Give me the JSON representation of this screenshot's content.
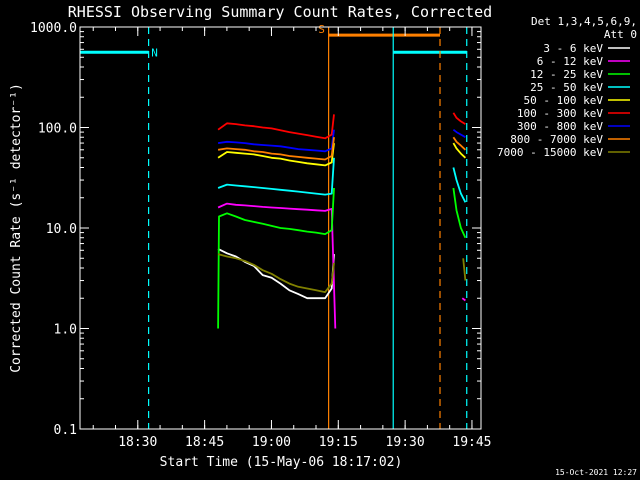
{
  "chart_data": {
    "type": "line",
    "title": "RHESSI Observing Summary Count Rates, Corrected",
    "xlabel": "Start Time (15-May-06 18:17:02)",
    "ylabel": "Corrected Count Rate (s⁻¹ detector⁻¹)",
    "yscale": "log",
    "ylim": [
      0.1,
      1000
    ],
    "xlim_minutes": [
      0,
      90
    ],
    "x_ticks": [
      {
        "label": "18:30",
        "minutes": 12.97
      },
      {
        "label": "18:45",
        "minutes": 27.97
      },
      {
        "label": "19:00",
        "minutes": 42.97
      },
      {
        "label": "19:15",
        "minutes": 57.97
      },
      {
        "label": "19:30",
        "minutes": 72.97
      },
      {
        "label": "19:45",
        "minutes": 87.97
      }
    ],
    "y_ticks": [
      {
        "label": "1000.0",
        "value": 1000
      },
      {
        "label": "100.0",
        "value": 100
      },
      {
        "label": "10.0",
        "value": 10
      },
      {
        "label": "1.0",
        "value": 1
      },
      {
        "label": "0.1",
        "value": 0.1
      }
    ],
    "legend_header": [
      "Det 1,3,4,5,6,9,",
      "Att 0"
    ],
    "legend_position": "right",
    "grid": false,
    "timestamp": "15-Oct-2021 12:27",
    "series": [
      {
        "name": "3 - 6 keV",
        "color": "#ffffff",
        "segments": [
          [
            [
              31.0,
              6.2
            ],
            [
              33.0,
              5.6
            ],
            [
              35.0,
              5.2
            ],
            [
              37.0,
              4.6
            ],
            [
              39.0,
              4.2
            ],
            [
              41.0,
              3.4
            ],
            [
              43.0,
              3.2
            ],
            [
              45.0,
              2.8
            ],
            [
              47.0,
              2.4
            ],
            [
              49.0,
              2.2
            ],
            [
              51.0,
              2.0
            ],
            [
              53.0,
              2.0
            ],
            [
              55.0,
              2.0
            ],
            [
              56.5,
              2.5
            ],
            [
              57.0,
              5.5
            ]
          ]
        ]
      },
      {
        "name": "6 - 12 keV",
        "color": "#ff00ff",
        "segments": [
          [
            [
              31.0,
              16.0
            ],
            [
              33.0,
              17.5
            ],
            [
              35.0,
              17.0
            ],
            [
              37.0,
              16.8
            ],
            [
              39.0,
              16.5
            ],
            [
              41.0,
              16.2
            ],
            [
              43.0,
              16.0
            ],
            [
              45.0,
              15.8
            ],
            [
              47.0,
              15.6
            ],
            [
              49.0,
              15.4
            ],
            [
              51.0,
              15.2
            ],
            [
              53.0,
              15.0
            ],
            [
              55.0,
              14.8
            ],
            [
              56.5,
              15.5
            ],
            [
              57.3,
              1.0
            ]
          ],
          [
            [
              85.8,
              2.0
            ],
            [
              86.5,
              1.9
            ]
          ]
        ]
      },
      {
        "name": "12 - 25 keV",
        "color": "#00ff00",
        "segments": [
          [
            [
              31.0,
              1.0
            ],
            [
              31.2,
              13.0
            ],
            [
              33.0,
              14.0
            ],
            [
              35.0,
              13.0
            ],
            [
              37.0,
              12.0
            ],
            [
              39.0,
              11.5
            ],
            [
              41.0,
              11.0
            ],
            [
              43.0,
              10.5
            ],
            [
              45.0,
              10.0
            ],
            [
              47.0,
              9.8
            ],
            [
              49.0,
              9.5
            ],
            [
              51.0,
              9.2
            ],
            [
              53.0,
              9.0
            ],
            [
              55.0,
              8.7
            ],
            [
              56.5,
              9.5
            ],
            [
              57.0,
              25.0
            ]
          ],
          [
            [
              83.8,
              25.0
            ],
            [
              84.5,
              15.0
            ],
            [
              85.5,
              10.0
            ],
            [
              86.5,
              8.0
            ]
          ]
        ]
      },
      {
        "name": "25 - 50 keV",
        "color": "#00ffff",
        "segments": [
          [
            [
              31.0,
              25.0
            ],
            [
              33.0,
              27.0
            ],
            [
              35.0,
              26.5
            ],
            [
              37.0,
              26.0
            ],
            [
              39.0,
              25.5
            ],
            [
              41.0,
              25.0
            ],
            [
              43.0,
              24.5
            ],
            [
              45.0,
              24.0
            ],
            [
              47.0,
              23.5
            ],
            [
              49.0,
              23.0
            ],
            [
              51.0,
              22.5
            ],
            [
              53.0,
              22.0
            ],
            [
              55.0,
              21.5
            ],
            [
              56.5,
              22.0
            ],
            [
              57.0,
              50.0
            ]
          ],
          [
            [
              83.8,
              40.0
            ],
            [
              84.5,
              30.0
            ],
            [
              85.5,
              22.0
            ],
            [
              86.5,
              18.0
            ]
          ]
        ]
      },
      {
        "name": "50 - 100 keV",
        "color": "#ffff00",
        "segments": [
          [
            [
              31.0,
              50.0
            ],
            [
              33.0,
              57.0
            ],
            [
              35.0,
              56.0
            ],
            [
              37.0,
              55.0
            ],
            [
              39.0,
              54.0
            ],
            [
              41.0,
              52.0
            ],
            [
              43.0,
              50.0
            ],
            [
              45.0,
              49.0
            ],
            [
              47.0,
              47.0
            ],
            [
              49.0,
              45.5
            ],
            [
              51.0,
              44.0
            ],
            [
              53.0,
              43.0
            ],
            [
              55.0,
              42.0
            ],
            [
              56.5,
              45.0
            ],
            [
              57.0,
              70.0
            ]
          ],
          [
            [
              83.8,
              70.0
            ],
            [
              84.5,
              62.0
            ],
            [
              85.5,
              55.0
            ],
            [
              86.5,
              50.0
            ]
          ]
        ]
      },
      {
        "name": "100 - 300 keV",
        "color": "#ff0000",
        "segments": [
          [
            [
              31.0,
              95.0
            ],
            [
              33.0,
              110.0
            ],
            [
              35.0,
              108.0
            ],
            [
              37.0,
              105.0
            ],
            [
              39.0,
              103.0
            ],
            [
              41.0,
              100.0
            ],
            [
              43.0,
              98.0
            ],
            [
              45.0,
              94.0
            ],
            [
              47.0,
              90.0
            ],
            [
              49.0,
              87.0
            ],
            [
              51.0,
              84.0
            ],
            [
              53.0,
              81.0
            ],
            [
              55.0,
              78.0
            ],
            [
              56.5,
              85.0
            ],
            [
              57.0,
              135.0
            ]
          ],
          [
            [
              83.8,
              140.0
            ],
            [
              84.5,
              125.0
            ],
            [
              85.5,
              115.0
            ],
            [
              86.5,
              108.0
            ]
          ]
        ]
      },
      {
        "name": "300 - 800 keV",
        "color": "#0000ff",
        "segments": [
          [
            [
              31.0,
              70.0
            ],
            [
              33.0,
              72.0
            ],
            [
              35.0,
              71.0
            ],
            [
              37.0,
              70.0
            ],
            [
              39.0,
              68.0
            ],
            [
              41.0,
              67.0
            ],
            [
              43.0,
              66.0
            ],
            [
              45.0,
              65.0
            ],
            [
              47.0,
              63.0
            ],
            [
              49.0,
              61.0
            ],
            [
              51.0,
              60.0
            ],
            [
              53.0,
              59.0
            ],
            [
              55.0,
              58.0
            ],
            [
              56.5,
              62.0
            ],
            [
              57.0,
              95.0
            ]
          ],
          [
            [
              83.8,
              95.0
            ],
            [
              84.5,
              90.0
            ],
            [
              85.5,
              85.0
            ],
            [
              86.5,
              80.0
            ]
          ]
        ]
      },
      {
        "name": "800 - 7000 keV",
        "color": "#ff8000",
        "segments": [
          [
            [
              31.0,
              60.0
            ],
            [
              33.0,
              62.0
            ],
            [
              35.0,
              61.0
            ],
            [
              37.0,
              60.0
            ],
            [
              39.0,
              58.0
            ],
            [
              41.0,
              57.0
            ],
            [
              43.0,
              55.0
            ],
            [
              45.0,
              54.0
            ],
            [
              47.0,
              52.0
            ],
            [
              49.0,
              51.0
            ],
            [
              51.0,
              50.0
            ],
            [
              53.0,
              49.0
            ],
            [
              55.0,
              48.0
            ],
            [
              56.5,
              52.0
            ],
            [
              57.0,
              80.0
            ]
          ],
          [
            [
              83.8,
              80.0
            ],
            [
              84.5,
              72.0
            ],
            [
              85.5,
              66.0
            ],
            [
              86.5,
              60.0
            ]
          ]
        ]
      },
      {
        "name": "7000 - 15000 keV",
        "color": "#808000",
        "segments": [
          [
            [
              31.0,
              5.5
            ],
            [
              33.0,
              5.2
            ],
            [
              35.0,
              5.0
            ],
            [
              37.0,
              4.7
            ],
            [
              39.0,
              4.3
            ],
            [
              41.0,
              3.8
            ],
            [
              43.0,
              3.5
            ],
            [
              45.0,
              3.1
            ],
            [
              47.0,
              2.8
            ],
            [
              49.0,
              2.6
            ],
            [
              51.0,
              2.5
            ],
            [
              53.0,
              2.4
            ],
            [
              55.0,
              2.3
            ],
            [
              56.5,
              2.8
            ],
            [
              57.0,
              4.5
            ]
          ],
          [
            [
              86.0,
              5.0
            ],
            [
              86.5,
              3.0
            ]
          ]
        ]
      }
    ],
    "annotations": [
      {
        "type": "night-bar",
        "label": "N",
        "color": "#00ffff",
        "x_start": 0,
        "x_end": 15.4,
        "y": 560
      },
      {
        "type": "night-bar",
        "label": "",
        "color": "#00ffff",
        "x_start": 70.3,
        "x_end": 86.8,
        "y": 560
      },
      {
        "type": "saa-bar",
        "label": "S",
        "color": "#ff8000",
        "x_start": 55.8,
        "x_end": 80.8,
        "y": 830
      },
      {
        "type": "vline",
        "color": "#00ffff",
        "style": "dashed",
        "x": 15.4
      },
      {
        "type": "vline",
        "color": "#ff8000",
        "style": "solid",
        "x": 55.8
      },
      {
        "type": "vline",
        "color": "#00ffff",
        "style": "solid",
        "x": 70.3
      },
      {
        "type": "vline",
        "color": "#ff8000",
        "style": "dashed",
        "x": 80.8
      },
      {
        "type": "vline",
        "color": "#00ffff",
        "style": "dashed",
        "x": 86.8
      }
    ]
  }
}
